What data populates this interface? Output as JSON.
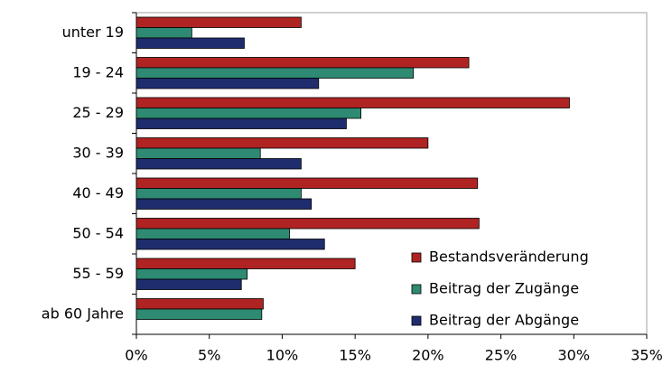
{
  "chart_data": {
    "type": "bar",
    "orientation": "horizontal",
    "categories": [
      "unter 19",
      "19 - 24",
      "25 - 29",
      "30 - 39",
      "40 - 49",
      "50 - 54",
      "55 - 59",
      "ab 60 Jahre"
    ],
    "series": [
      {
        "name": "Bestandsveränderung",
        "color": "#b02323",
        "values": [
          11.3,
          22.8,
          29.7,
          20.0,
          23.4,
          23.5,
          15.0,
          8.7
        ]
      },
      {
        "name": "Beitrag der Zugänge",
        "color": "#2e8a72",
        "values": [
          3.8,
          19.0,
          15.4,
          8.5,
          11.3,
          10.5,
          7.6,
          8.6
        ]
      },
      {
        "name": "Beitrag der Abgänge",
        "color": "#1f2d6e",
        "values": [
          7.4,
          12.5,
          14.4,
          11.3,
          12.0,
          12.9,
          7.2,
          null
        ]
      }
    ],
    "xlim": [
      0,
      35
    ],
    "xticks": [
      {
        "value": 0,
        "label": "0%"
      },
      {
        "value": 5,
        "label": "5%"
      },
      {
        "value": 10,
        "label": "10%"
      },
      {
        "value": 15,
        "label": "15%"
      },
      {
        "value": 20,
        "label": "20%"
      },
      {
        "value": 25,
        "label": "25%"
      },
      {
        "value": 30,
        "label": "30%"
      },
      {
        "value": 35,
        "label": "35%"
      }
    ],
    "legend": "lower right",
    "grid": false
  }
}
